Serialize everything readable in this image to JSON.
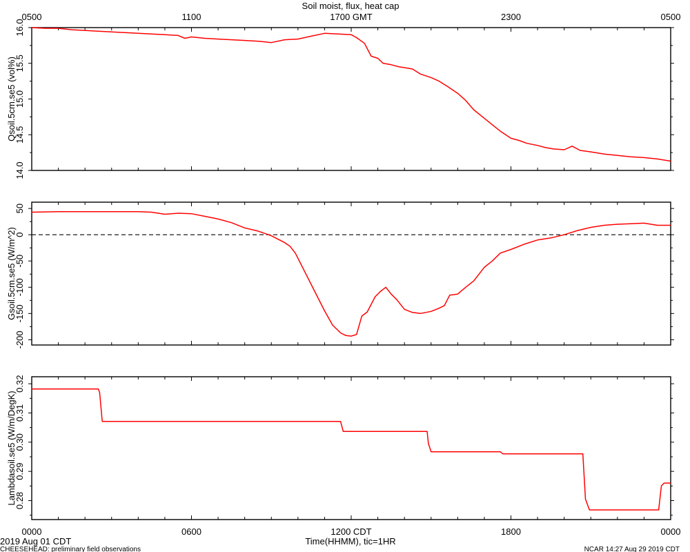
{
  "title": "Soil moist, flux, heat cap",
  "top_axis": {
    "ticks": [
      {
        "hour": 0,
        "label": "0500"
      },
      {
        "hour": 6,
        "label": "1100"
      },
      {
        "hour": 12,
        "label": "1700 GMT"
      },
      {
        "hour": 18,
        "label": "2300"
      },
      {
        "hour": 24,
        "label": "0500"
      }
    ]
  },
  "bottom_axis": {
    "xlabel": "Time(HHMM), tic=1HR",
    "ticks": [
      {
        "hour": 0,
        "label": "0000"
      },
      {
        "hour": 6,
        "label": "0600"
      },
      {
        "hour": 12,
        "label": "1200 CDT"
      },
      {
        "hour": 18,
        "label": "1800"
      },
      {
        "hour": 24,
        "label": "0000"
      }
    ]
  },
  "footer": {
    "date": "2019 Aug 01 CDT",
    "left": "CHEESEHEAD: preliminary field observations",
    "right": "NCAR 14:27 Aug 29 2019 CDT"
  },
  "colors": {
    "series": "#ff0000",
    "axes": "#000000",
    "reference_line": "#000000"
  },
  "chart_data": [
    {
      "type": "line",
      "ylabel": "Qsoil.5cm.se5 (vol%)",
      "xlim": [
        0,
        24
      ],
      "ylim": [
        14.0,
        16.0
      ],
      "yticks": [
        14.0,
        14.5,
        15.0,
        15.5,
        16.0
      ],
      "ytick_labels": [
        "14.0",
        "14.5",
        "15.0",
        "15.5",
        "16.0"
      ],
      "series": [
        {
          "x": [
            0,
            0.5,
            1,
            1.5,
            2,
            2.5,
            3,
            3.5,
            4,
            4.5,
            5,
            5.5,
            5.75,
            6,
            6.5,
            7,
            7.5,
            8,
            8.5,
            9,
            9.5,
            10,
            10.5,
            11,
            11.5,
            12,
            12.2,
            12.5,
            12.75,
            13,
            13.2,
            13.5,
            13.8,
            14,
            14.3,
            14.6,
            15,
            15.3,
            15.6,
            16,
            16.3,
            16.6,
            17,
            17.3,
            17.6,
            18,
            18.3,
            18.6,
            19,
            19.3,
            19.6,
            20,
            20.3,
            20.6,
            21,
            21.5,
            22,
            22.5,
            23,
            23.5,
            24
          ],
          "y": [
            16.0,
            15.99,
            15.99,
            15.97,
            15.96,
            15.95,
            15.94,
            15.93,
            15.92,
            15.91,
            15.9,
            15.89,
            15.85,
            15.87,
            15.85,
            15.84,
            15.83,
            15.82,
            15.81,
            15.79,
            15.83,
            15.84,
            15.88,
            15.92,
            15.91,
            15.9,
            15.86,
            15.78,
            15.6,
            15.57,
            15.5,
            15.48,
            15.45,
            15.44,
            15.42,
            15.35,
            15.3,
            15.25,
            15.18,
            15.08,
            14.98,
            14.85,
            14.73,
            14.64,
            14.55,
            14.45,
            14.42,
            14.38,
            14.35,
            14.32,
            14.3,
            14.29,
            14.34,
            14.28,
            14.26,
            14.23,
            14.21,
            14.19,
            14.18,
            14.16,
            14.13
          ]
        }
      ]
    },
    {
      "type": "line",
      "ylabel": "Gsoil.5cm.se5 (W/m^2)",
      "xlim": [
        0,
        24
      ],
      "ylim": [
        -210,
        62
      ],
      "yticks": [
        -200,
        -150,
        -100,
        -50,
        0,
        50
      ],
      "ytick_labels": [
        "-200",
        "-150",
        "-100",
        "-50",
        "0",
        "50"
      ],
      "reference_line": 0,
      "series": [
        {
          "x": [
            0,
            1,
            2,
            3,
            4,
            4.5,
            5,
            5.5,
            6,
            6.5,
            7,
            7.5,
            8,
            8.5,
            9,
            9.5,
            9.7,
            9.9,
            10.2,
            10.6,
            11,
            11.3,
            11.6,
            11.8,
            12,
            12.2,
            12.4,
            12.6,
            12.9,
            13.1,
            13.3,
            13.5,
            13.7,
            14,
            14.3,
            14.6,
            15,
            15.3,
            15.5,
            15.7,
            16,
            16.3,
            16.6,
            17,
            17.3,
            17.6,
            18,
            18.5,
            19,
            19.5,
            20,
            20.5,
            21,
            21.5,
            22,
            22.5,
            23,
            23.5,
            24
          ],
          "y": [
            43,
            44,
            44,
            44,
            44,
            43,
            39,
            41,
            40,
            35,
            30,
            23,
            13,
            7,
            -2,
            -15,
            -22,
            -35,
            -65,
            -105,
            -145,
            -172,
            -187,
            -192,
            -193,
            -190,
            -155,
            -147,
            -118,
            -108,
            -100,
            -113,
            -123,
            -142,
            -148,
            -150,
            -146,
            -140,
            -135,
            -115,
            -113,
            -100,
            -88,
            -62,
            -50,
            -35,
            -28,
            -18,
            -10,
            -6,
            0,
            8,
            14,
            18,
            20,
            21,
            22,
            18,
            18
          ]
        }
      ]
    },
    {
      "type": "line",
      "ylabel": "Lambdasoil.se5 (W/m/DegK)",
      "xlim": [
        0,
        24
      ],
      "ylim": [
        0.2735,
        0.3224
      ],
      "yticks": [
        0.28,
        0.29,
        0.3,
        0.31,
        0.32
      ],
      "ytick_labels": [
        "0.28",
        "0.29",
        "0.30",
        "0.31",
        "0.32"
      ],
      "series": [
        {
          "x": [
            0,
            2.5,
            2.55,
            2.65,
            11.6,
            11.7,
            14.85,
            14.9,
            15.0,
            17.6,
            17.7,
            20.7,
            20.8,
            20.95,
            23.55,
            23.65,
            23.75,
            24
          ],
          "y": [
            0.3182,
            0.3182,
            0.317,
            0.3071,
            0.3071,
            0.3037,
            0.3037,
            0.2995,
            0.2967,
            0.2967,
            0.296,
            0.296,
            0.2805,
            0.2768,
            0.2768,
            0.285,
            0.286,
            0.286
          ]
        }
      ]
    }
  ]
}
